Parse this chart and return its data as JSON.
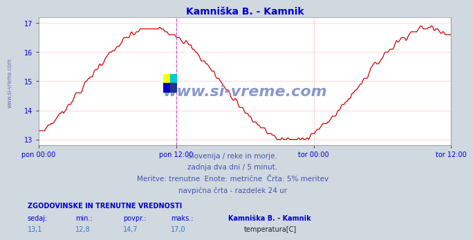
{
  "title": "Kamniška B. - Kamnik",
  "title_color": "#0000cc",
  "bg_color": "#d0d8e0",
  "plot_bg_color": "#ffffff",
  "grid_color": "#ffaaaa",
  "line_color": "#cc0000",
  "line_width": 1.0,
  "ylim": [
    12.8,
    17.2
  ],
  "yticks": [
    13,
    14,
    15,
    16,
    17
  ],
  "xtick_labels": [
    "pon 00:00",
    "pon 12:00",
    "tor 00:00",
    "tor 12:00"
  ],
  "vline_color": "#cc44cc",
  "watermark": "www.si-vreme.com",
  "watermark_color": "#8899cc",
  "sidebar_text": "www.si-vreme.com",
  "sidebar_color": "#6677aa",
  "footer_lines": [
    "Slovenija / reke in morje.",
    "zadnja dva dni / 5 minut.",
    "Meritve: trenutne  Enote: metrične  Črta: 5% meritev",
    "navpična črta - razdelek 24 ur"
  ],
  "footer_color": "#4455aa",
  "footer_fontsize": 7.5,
  "stats_header": "ZGODOVINSKE IN TRENUTNE VREDNOSTI",
  "stats_color": "#0000cc",
  "stats_labels": [
    "sedaj:",
    "min.:",
    "povpr.:",
    "maks.:"
  ],
  "stats_values": [
    "13,1",
    "12,8",
    "14,7",
    "17,0"
  ],
  "legend_label": "Kamniška B. - Kamnik",
  "legend_series": "temperatura[C]",
  "legend_color": "#cc0000",
  "logo_colors": [
    "#00cccc",
    "#ffff00",
    "#0000bb",
    "#223388"
  ]
}
